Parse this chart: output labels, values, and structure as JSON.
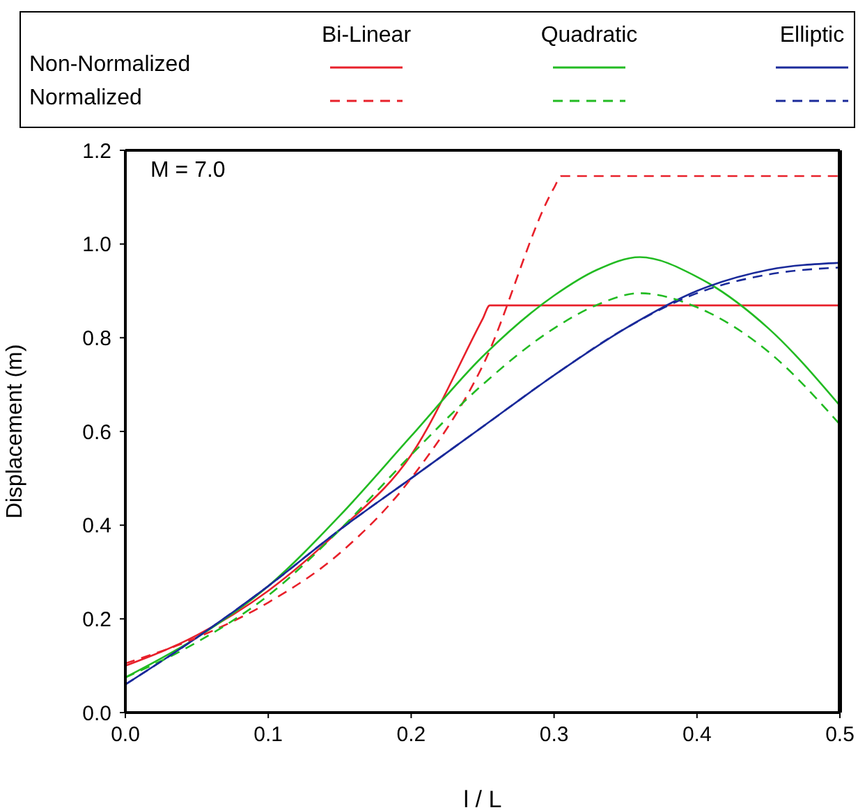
{
  "chart_data": {
    "type": "line",
    "xlabel": "l / L",
    "ylabel": "Displacement (m)",
    "annotations": [
      "Non-Normalized",
      "Normalized",
      "Bi-Linear",
      "Quadratic",
      "Elliptic",
      "M = 7.0"
    ],
    "xlim": [
      0,
      0.5
    ],
    "xticks": [
      {
        "value": 0,
        "label": "0.0"
      },
      0.1,
      0.2,
      0.3,
      0.4,
      0.5
    ],
    "ylim": [
      0,
      1.2
    ],
    "yticks": [
      {
        "value": 0,
        "label": "0.0"
      },
      0.2,
      0.4,
      0.6,
      0.8,
      {
        "value": 1,
        "label": "1.0"
      },
      1.2
    ],
    "grid": false,
    "marker": "none",
    "series": [
      {
        "color": "#e8202a",
        "line_style": "solid",
        "x": [
          0,
          0.05,
          0.1,
          0.15,
          0.2,
          0.25,
          0.255,
          0.3,
          0.4,
          0.5
        ],
        "values": [
          0.1,
          0.165,
          0.26,
          0.39,
          0.55,
          0.84,
          0.869,
          0.869,
          0.869,
          0.869
        ]
      },
      {
        "color": "#22bb22",
        "line_style": "solid",
        "x": [
          0,
          0.05,
          0.1,
          0.15,
          0.2,
          0.25,
          0.3,
          0.33,
          0.36,
          0.4,
          0.45,
          0.5
        ],
        "values": [
          0.075,
          0.16,
          0.27,
          0.42,
          0.59,
          0.76,
          0.89,
          0.945,
          0.972,
          0.93,
          0.82,
          0.655
        ]
      },
      {
        "color": "#1a2a9a",
        "line_style": "solid",
        "x": [
          0,
          0.05,
          0.1,
          0.15,
          0.2,
          0.25,
          0.3,
          0.35,
          0.4,
          0.45,
          0.5
        ],
        "values": [
          0.06,
          0.16,
          0.27,
          0.39,
          0.5,
          0.61,
          0.72,
          0.82,
          0.9,
          0.945,
          0.96
        ]
      },
      {
        "color": "#e8202a",
        "line_style": "dashed",
        "x": [
          0,
          0.05,
          0.1,
          0.15,
          0.2,
          0.25,
          0.3,
          0.305,
          0.4,
          0.5
        ],
        "values": [
          0.105,
          0.16,
          0.235,
          0.34,
          0.5,
          0.74,
          1.12,
          1.145,
          1.145,
          1.145
        ]
      },
      {
        "color": "#22bb22",
        "line_style": "dashed",
        "x": [
          0,
          0.05,
          0.1,
          0.15,
          0.2,
          0.25,
          0.3,
          0.33,
          0.36,
          0.4,
          0.45,
          0.5
        ],
        "values": [
          0.075,
          0.15,
          0.25,
          0.39,
          0.55,
          0.7,
          0.82,
          0.87,
          0.895,
          0.865,
          0.77,
          0.615
        ]
      },
      {
        "color": "#1a2a9a",
        "line_style": "dashed",
        "x": [
          0,
          0.05,
          0.1,
          0.15,
          0.2,
          0.25,
          0.3,
          0.35,
          0.4,
          0.45,
          0.5
        ],
        "values": [
          0.06,
          0.16,
          0.27,
          0.39,
          0.5,
          0.61,
          0.72,
          0.82,
          0.895,
          0.935,
          0.95
        ]
      }
    ]
  }
}
